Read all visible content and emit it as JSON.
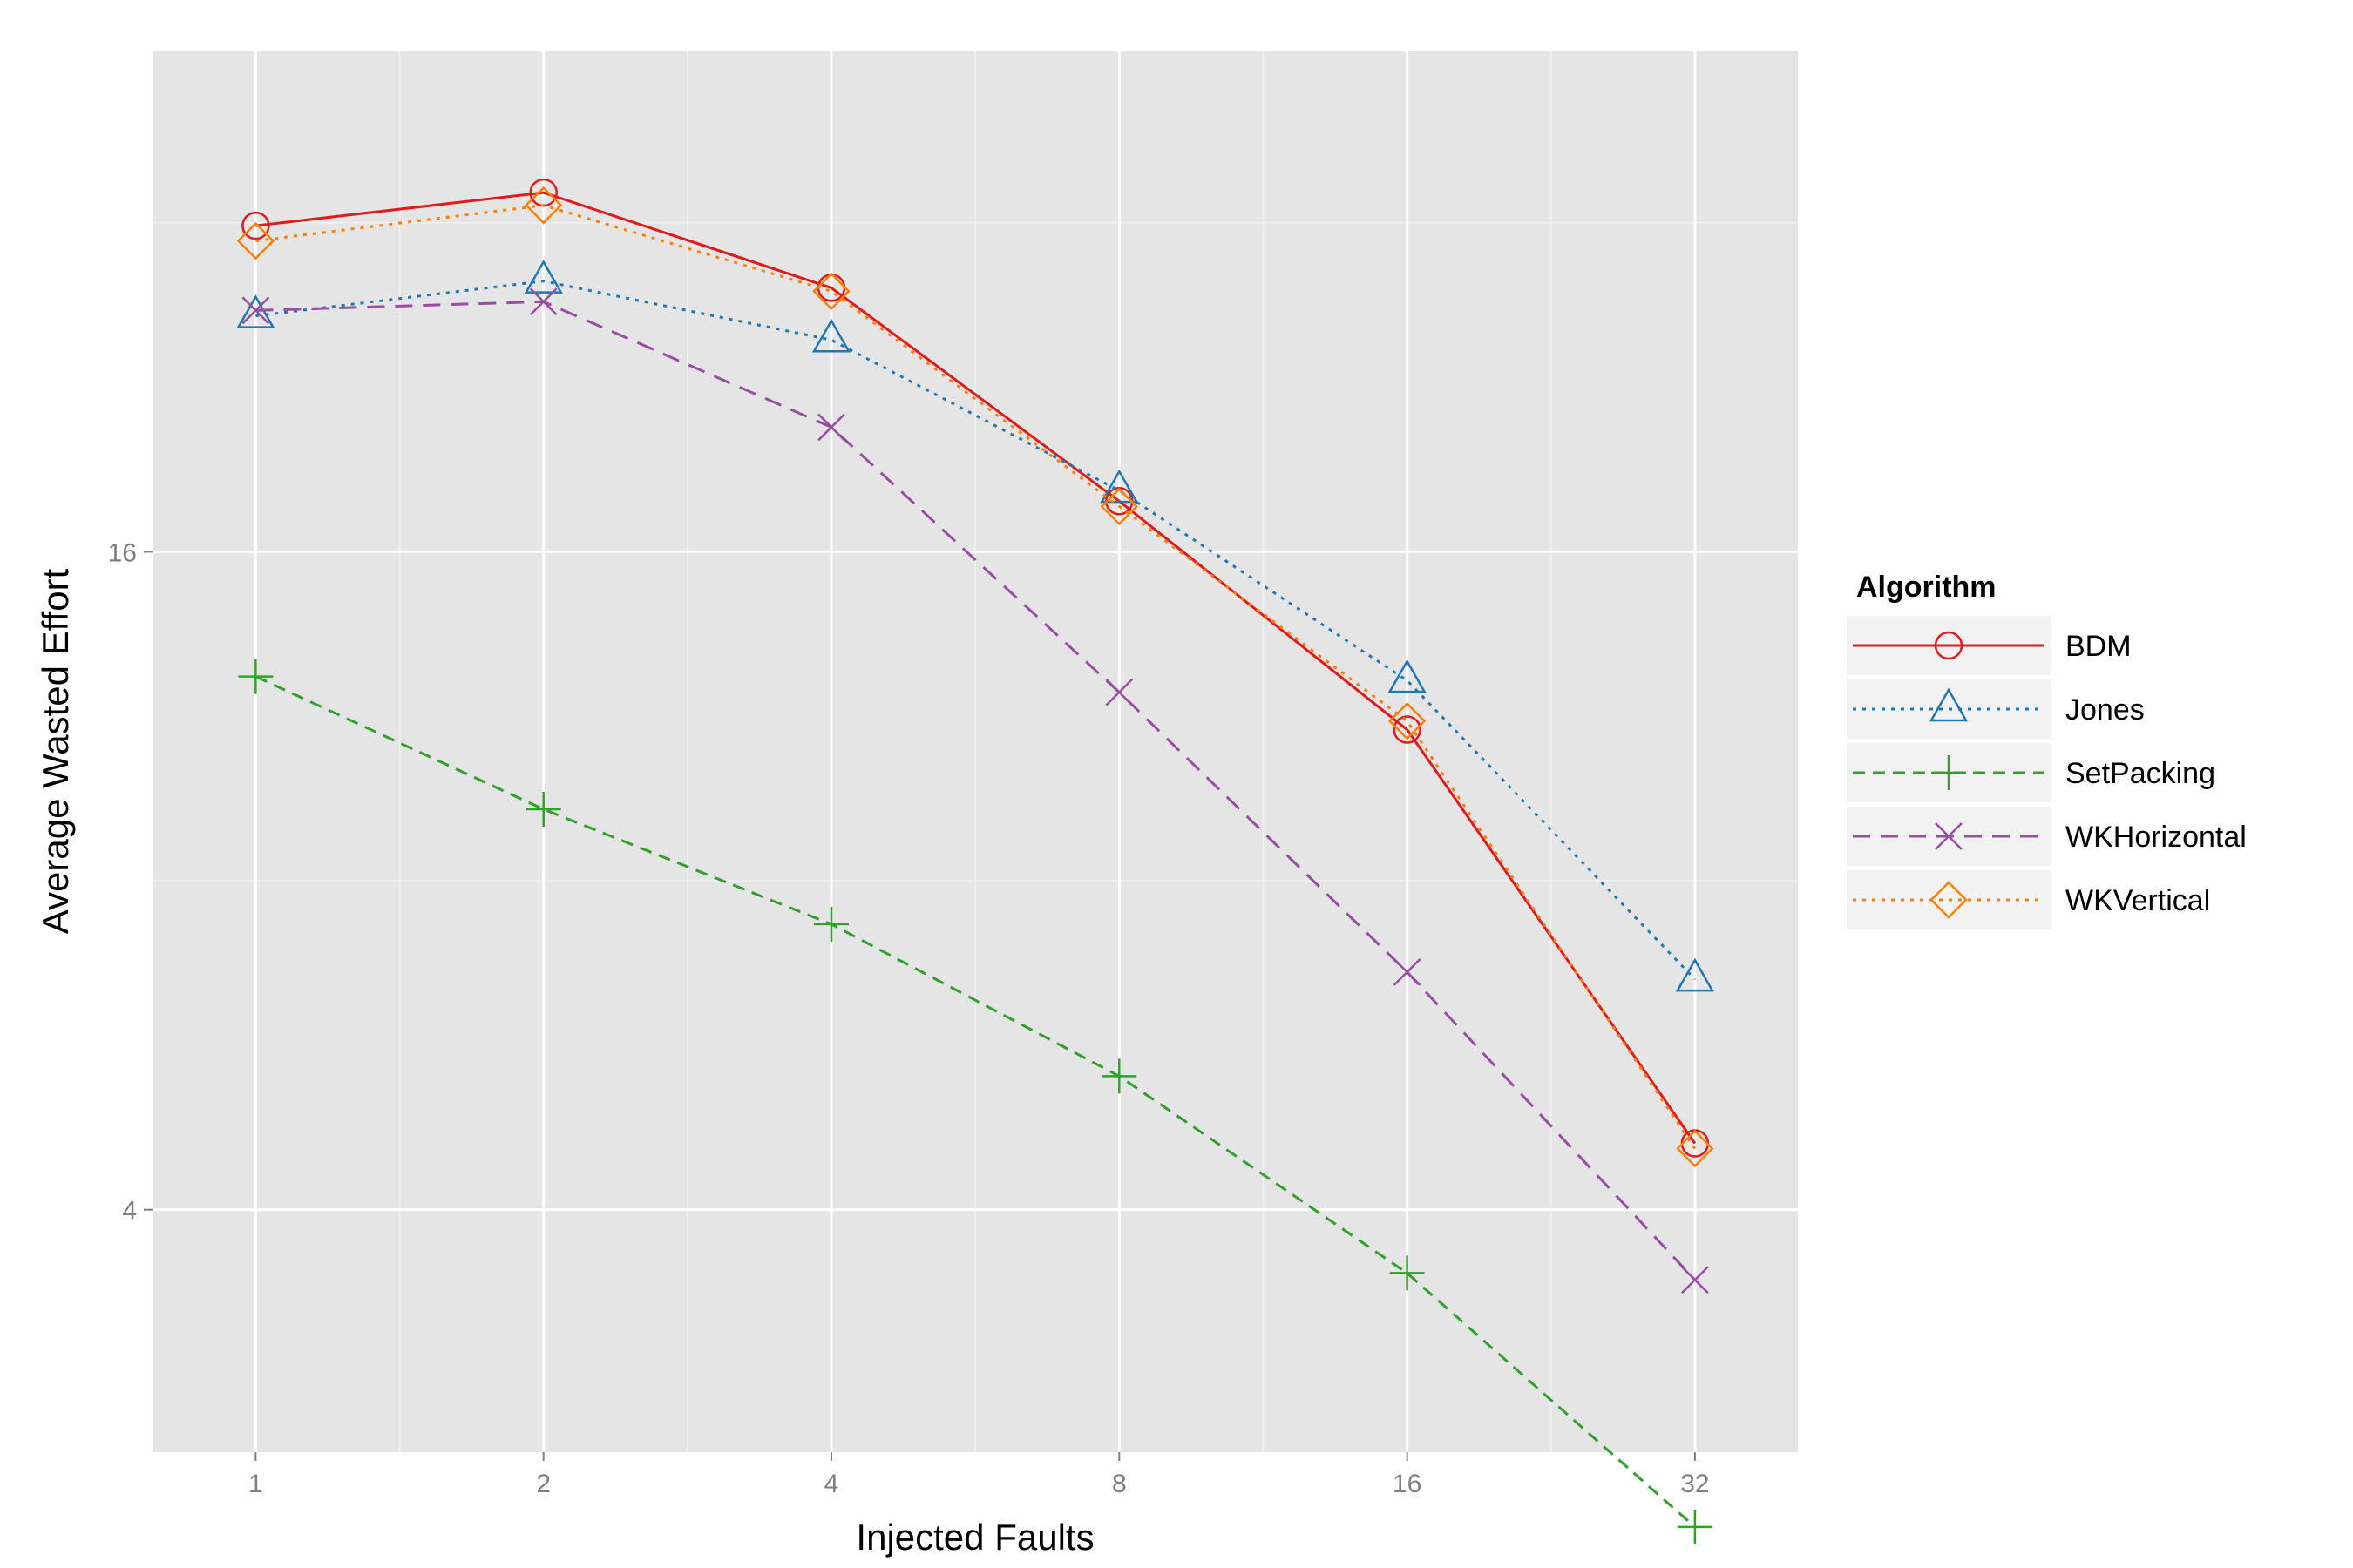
{
  "chart_data": {
    "type": "line",
    "title": "",
    "xlabel": "Injected Faults",
    "ylabel": "Average Wasted Effort",
    "x_scale": "log2",
    "y_scale": "log2",
    "x": [
      1,
      2,
      4,
      8,
      16,
      32
    ],
    "x_tick_labels": [
      "1",
      "2",
      "4",
      "8",
      "16",
      "32"
    ],
    "y_ticks": [
      4,
      16
    ],
    "y_tick_labels": [
      "4",
      "16"
    ],
    "xlim": [
      0.78,
      41
    ],
    "ylim": [
      2.4,
      46
    ],
    "grid": true,
    "legend": {
      "title": "Algorithm",
      "placement": "right"
    },
    "series": [
      {
        "name": "BDM",
        "color": "#e31a1c",
        "dash": "solid",
        "marker": "circle",
        "values": [
          31.8,
          34.1,
          27.9,
          17.8,
          11.0,
          4.6
        ]
      },
      {
        "name": "Jones",
        "color": "#1f78b4",
        "dash": "dotted",
        "marker": "triangle",
        "values": [
          26.3,
          28.3,
          25.0,
          18.2,
          12.2,
          6.5
        ]
      },
      {
        "name": "SetPacking",
        "color": "#33a02c",
        "dash": "dashed",
        "marker": "plus",
        "values": [
          12.3,
          9.3,
          7.3,
          5.3,
          3.5,
          2.05
        ]
      },
      {
        "name": "WKHorizontal",
        "color": "#984ea3",
        "dash": "longdash",
        "marker": "cross",
        "values": [
          26.6,
          27.1,
          20.8,
          11.9,
          6.6,
          3.45
        ]
      },
      {
        "name": "WKVertical",
        "color": "#ff7f00",
        "dash": "dotted",
        "marker": "diamond",
        "values": [
          30.8,
          33.2,
          27.7,
          17.6,
          11.2,
          4.55
        ]
      }
    ]
  }
}
